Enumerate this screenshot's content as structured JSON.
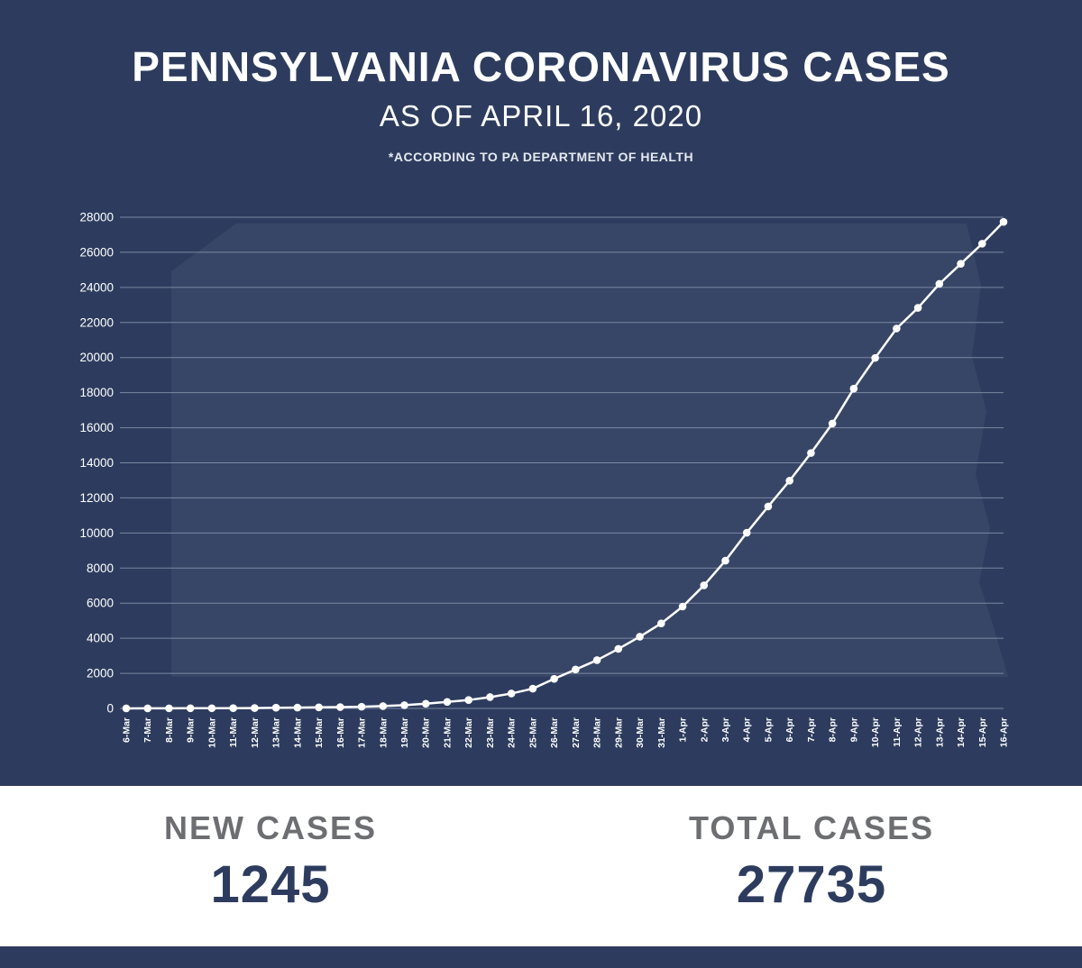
{
  "header": {
    "title": "PENNSYLVANIA CORONAVIRUS CASES",
    "subtitle": "AS OF APRIL 16, 2020",
    "note": "*ACCORDING TO PA DEPARTMENT OF HEALTH"
  },
  "chart_data": {
    "type": "line",
    "title": "Pennsylvania coronavirus cumulative cases by date",
    "x": [
      "6-Mar",
      "7-Mar",
      "8-Mar",
      "9-Mar",
      "10-Mar",
      "11-Mar",
      "12-Mar",
      "13-Mar",
      "14-Mar",
      "15-Mar",
      "16-Mar",
      "17-Mar",
      "18-Mar",
      "19-Mar",
      "20-Mar",
      "21-Mar",
      "22-Mar",
      "23-Mar",
      "24-Mar",
      "25-Mar",
      "26-Mar",
      "27-Mar",
      "28-Mar",
      "29-Mar",
      "30-Mar",
      "31-Mar",
      "1-Apr",
      "2-Apr",
      "3-Apr",
      "4-Apr",
      "5-Apr",
      "6-Apr",
      "7-Apr",
      "8-Apr",
      "9-Apr",
      "10-Apr",
      "11-Apr",
      "12-Apr",
      "13-Apr",
      "14-Apr",
      "15-Apr",
      "16-Apr"
    ],
    "values": [
      2,
      4,
      6,
      10,
      12,
      16,
      21,
      41,
      47,
      63,
      76,
      96,
      133,
      185,
      268,
      371,
      479,
      644,
      851,
      1127,
      1687,
      2218,
      2751,
      3394,
      4087,
      4843,
      5805,
      7016,
      8420,
      10017,
      11510,
      12980,
      14559,
      16239,
      18228,
      19979,
      21655,
      22833,
      24199,
      25345,
      26490,
      27735
    ],
    "xlabel": "",
    "ylabel": "",
    "ylim": [
      0,
      28000
    ],
    "ytick_step": 2000,
    "grid": true,
    "legend": "none",
    "line_color": "#ffffff",
    "marker": "circle"
  },
  "stats": {
    "new_cases_label": "NEW CASES",
    "new_cases_value": "1245",
    "total_cases_label": "TOTAL CASES",
    "total_cases_value": "27735"
  },
  "colors": {
    "background_navy": "#2d3c5e",
    "line_white": "#ffffff",
    "gridline": "#93a0b8",
    "label_gray": "#6d6e71"
  }
}
